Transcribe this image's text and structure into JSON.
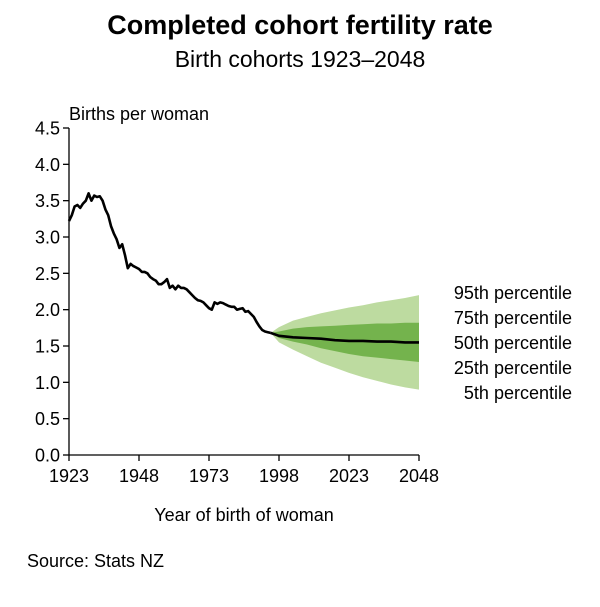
{
  "title": "Completed cohort fertility rate",
  "subtitle": "Birth cohorts 1923–2048",
  "source": "Source: Stats NZ",
  "chart_data": {
    "type": "line",
    "title": "Completed cohort fertility rate",
    "subtitle": "Birth cohorts 1923–2048",
    "xlabel": "Year of birth of woman",
    "ylabel": "Births per woman",
    "xlim": [
      1923,
      2048
    ],
    "ylim": [
      0,
      4.5
    ],
    "xticks": [
      "1923",
      "1948",
      "1973",
      "1998",
      "2023",
      "2048"
    ],
    "yticks": [
      "0.0",
      "0.5",
      "1.0",
      "1.5",
      "2.0",
      "2.5",
      "3.0",
      "3.5",
      "4.0",
      "4.5"
    ],
    "grid": false,
    "colors": {
      "band_5_95": "#bddba0",
      "band_25_75": "#74b34d",
      "line": "#000000"
    },
    "historical": {
      "x": [
        1923,
        1924,
        1925,
        1926,
        1927,
        1928,
        1929,
        1930,
        1931,
        1932,
        1933,
        1934,
        1935,
        1936,
        1937,
        1938,
        1939,
        1940,
        1941,
        1942,
        1943,
        1944,
        1945,
        1946,
        1947,
        1948,
        1949,
        1950,
        1951,
        1952,
        1953,
        1954,
        1955,
        1956,
        1957,
        1958,
        1959,
        1960,
        1961,
        1962,
        1963,
        1964,
        1965,
        1966,
        1967,
        1968,
        1969,
        1970,
        1971,
        1972,
        1973,
        1974,
        1975,
        1976,
        1977,
        1978,
        1979,
        1980,
        1981,
        1982,
        1983,
        1984,
        1985,
        1986,
        1987,
        1988,
        1989,
        1990,
        1991,
        1992,
        1993,
        1994,
        1995
      ],
      "y": [
        3.22,
        3.3,
        3.42,
        3.44,
        3.4,
        3.46,
        3.5,
        3.6,
        3.5,
        3.57,
        3.55,
        3.56,
        3.5,
        3.38,
        3.3,
        3.15,
        3.05,
        2.97,
        2.85,
        2.9,
        2.75,
        2.57,
        2.63,
        2.6,
        2.58,
        2.56,
        2.52,
        2.52,
        2.5,
        2.45,
        2.42,
        2.4,
        2.35,
        2.35,
        2.38,
        2.42,
        2.3,
        2.33,
        2.28,
        2.33,
        2.3,
        2.3,
        2.28,
        2.24,
        2.2,
        2.16,
        2.13,
        2.12,
        2.1,
        2.06,
        2.02,
        2.0,
        2.1,
        2.08,
        2.1,
        2.09,
        2.07,
        2.05,
        2.04,
        2.04,
        2.0,
        2.01,
        2.02,
        1.97,
        1.98,
        1.94,
        1.9,
        1.83,
        1.77,
        1.72,
        1.7,
        1.69,
        1.68
      ]
    },
    "projection": {
      "x": [
        1995,
        1998,
        2003,
        2008,
        2013,
        2018,
        2023,
        2028,
        2033,
        2038,
        2043,
        2048
      ],
      "series": [
        {
          "name": "95th percentile",
          "values": [
            1.68,
            1.76,
            1.85,
            1.9,
            1.95,
            1.99,
            2.03,
            2.06,
            2.1,
            2.13,
            2.16,
            2.2
          ]
        },
        {
          "name": "75th percentile",
          "values": [
            1.68,
            1.7,
            1.74,
            1.76,
            1.77,
            1.78,
            1.79,
            1.8,
            1.81,
            1.81,
            1.82,
            1.82
          ]
        },
        {
          "name": "50th percentile",
          "values": [
            1.68,
            1.64,
            1.62,
            1.61,
            1.6,
            1.58,
            1.57,
            1.57,
            1.56,
            1.56,
            1.55,
            1.55
          ]
        },
        {
          "name": "25th percentile",
          "values": [
            1.68,
            1.61,
            1.56,
            1.52,
            1.47,
            1.43,
            1.39,
            1.36,
            1.34,
            1.32,
            1.3,
            1.28
          ]
        },
        {
          "name": "5th percentile",
          "values": [
            1.68,
            1.55,
            1.45,
            1.36,
            1.27,
            1.2,
            1.13,
            1.07,
            1.02,
            0.97,
            0.93,
            0.9
          ]
        }
      ]
    }
  }
}
